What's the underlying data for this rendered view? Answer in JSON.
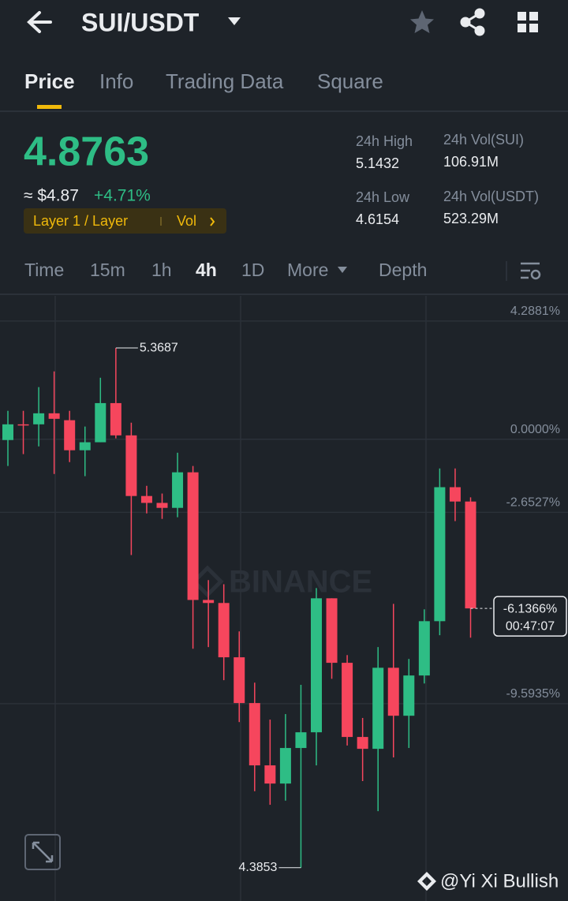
{
  "header": {
    "pair": "SUI/USDT"
  },
  "tabs": [
    "Price",
    "Info",
    "Trading Data",
    "Square"
  ],
  "ticker": {
    "price": "4.8763",
    "fiat": "≈ $4.87",
    "change": "+4.71%",
    "tag": "Layer 1 / Layer",
    "tag_link": "Vol",
    "stats": [
      {
        "label": "24h High",
        "value": "5.1432"
      },
      {
        "label": "24h Vol(SUI)",
        "value": "106.91M"
      },
      {
        "label": "24h Low",
        "value": "4.6154"
      },
      {
        "label": "24h Vol(USDT)",
        "value": "523.29M"
      }
    ]
  },
  "intervals": [
    "Time",
    "15m",
    "1h",
    "4h",
    "1D",
    "More",
    "Depth"
  ],
  "chart_data": {
    "type": "candlestick",
    "open": [
      -0.03,
      0.54,
      0.54,
      0.94,
      0.69,
      -0.4,
      -0.11,
      1.31,
      0.14,
      -2.06,
      -2.31,
      -2.49,
      -1.2,
      -5.83,
      -5.94,
      -7.91,
      -9.57,
      -11.83,
      -12.49,
      -11.2,
      -10.63,
      -5.77,
      -8.11,
      -10.8,
      -11.23,
      -8.29,
      -10.03,
      -8.57,
      -6.6,
      -1.74,
      -2.26
    ],
    "high": [
      1.03,
      1.03,
      1.89,
      2.46,
      1.03,
      0.46,
      2.23,
      3.31,
      0.6,
      -1.69,
      -1.97,
      -0.49,
      -0.97,
      -5.11,
      -5.26,
      -6.97,
      -8.83,
      -10.17,
      -9.97,
      -8.91,
      -5.4,
      -5.77,
      -7.83,
      -10.11,
      -7.54,
      -5.97,
      -7.97,
      -6.17,
      -1.06,
      -1.06,
      -2.11
    ],
    "low": [
      -0.97,
      -0.54,
      -0.26,
      -1.26,
      -0.83,
      -1.34,
      -0.11,
      0.03,
      -4.2,
      -2.69,
      -2.89,
      -2.83,
      -7.6,
      -7.54,
      -8.74,
      -10.26,
      -12.77,
      -13.26,
      -13.11,
      -15.54,
      -11.83,
      -8.69,
      -11.11,
      -12.4,
      -13.49,
      -11.54,
      -11.2,
      -8.86,
      -7.11,
      -2.97,
      -7.2
    ],
    "close": [
      0.54,
      0.51,
      0.94,
      0.74,
      -0.4,
      -0.11,
      1.31,
      0.14,
      -2.06,
      -2.31,
      -2.49,
      -1.2,
      -5.83,
      -5.94,
      -7.91,
      -9.57,
      -11.83,
      -12.49,
      -11.2,
      -10.63,
      -5.77,
      -8.11,
      -10.8,
      -11.23,
      -8.29,
      -10.03,
      -8.57,
      -6.6,
      -1.74,
      -2.26,
      -6.1366
    ],
    "up_color": "#2ebd85",
    "down_color": "#f6465d",
    "ylim": [
      -16.75,
      5.2
    ],
    "yticks": [
      {
        "value": 4.2881,
        "label": "4.2881%"
      },
      {
        "value": 0,
        "label": "0.0000%"
      },
      {
        "value": -2.6527,
        "label": "-2.6527%"
      },
      {
        "value": -9.5935,
        "label": "-9.5935%"
      }
    ],
    "grid": true,
    "max_label": "5.3687",
    "min_label": "4.3853",
    "current": {
      "value": -6.1366,
      "label": "-6.1366%",
      "countdown": "00:47:07"
    }
  },
  "watermark": "BINANCE",
  "credit": "@Yi Xi Bullish"
}
